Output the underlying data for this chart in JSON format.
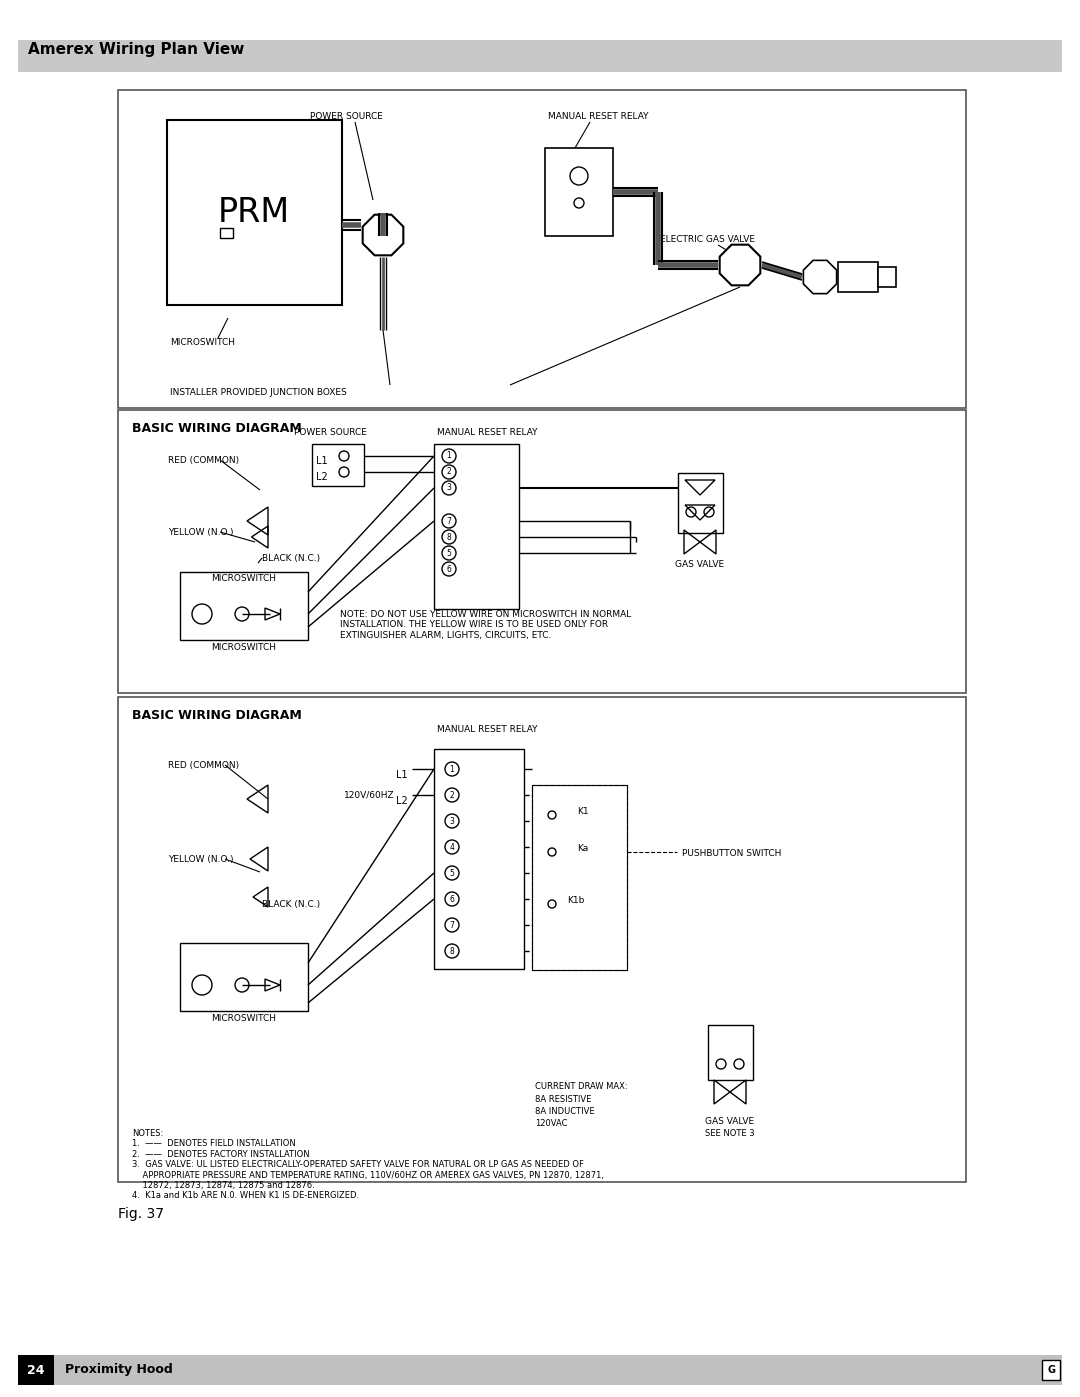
{
  "title": "Amerex Wiring Plan View",
  "page_bg": "#ffffff",
  "footer_text": "Proximity Hood",
  "footer_page": "24",
  "fig_label": "Fig. 37",
  "diagram2_title": "BASIC WIRING DIAGRAM",
  "diagram3_title": "BASIC WIRING DIAGRAM"
}
